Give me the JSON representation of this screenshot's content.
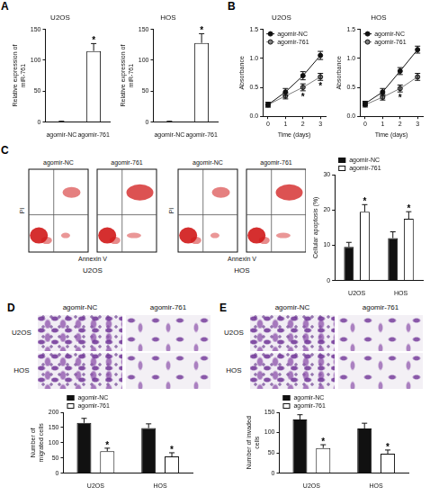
{
  "chart_data": [
    {
      "panel": "A",
      "type": "bar",
      "title": "U2OS",
      "y_label": "Relative expression of miR-761",
      "categories": [
        "agomir-NC",
        "agomir-761"
      ],
      "values": [
        1,
        115
      ],
      "errors": [
        0.35,
        12
      ],
      "colors": [
        "#111111",
        "#ffffff"
      ],
      "ylim": [
        0,
        150
      ],
      "yticks": [
        0,
        50,
        100,
        150
      ],
      "grid": false,
      "annotations": [
        {
          "index": 1,
          "text": "*"
        }
      ]
    },
    {
      "type": "bar",
      "title": "HOS",
      "y_label": "Relative expression of miR-761",
      "categories": [
        "agomir-NC",
        "agomir-761"
      ],
      "values": [
        1,
        128
      ],
      "errors": [
        0.3,
        15
      ],
      "colors": [
        "#111111",
        "#ffffff"
      ],
      "ylim": [
        0,
        150
      ],
      "yticks": [
        0,
        50,
        100,
        150
      ],
      "grid": false,
      "annotations": [
        {
          "index": 1,
          "text": "*"
        }
      ]
    },
    {
      "panel": "B",
      "type": "line",
      "title": "U2OS",
      "x_label": "Time (days)",
      "y_label": "Absorbance",
      "x": [
        0,
        1,
        2,
        3
      ],
      "xlim": [
        -0.3,
        3.3
      ],
      "xticks": [
        0,
        1,
        2,
        3
      ],
      "ylim": [
        0,
        1.5
      ],
      "yticks": [
        {
          "value": 0,
          "label": "0.0"
        },
        {
          "value": 0.5,
          "label": "0.5"
        },
        {
          "value": 1,
          "label": "1.0"
        },
        {
          "value": 1.5,
          "label": "1.5"
        }
      ],
      "grid": false,
      "legend": "top-left",
      "series": [
        {
          "name": "agomir-NC",
          "color": "#111111",
          "marker": "circle",
          "values": [
            0.2,
            0.42,
            0.7,
            1.05
          ],
          "errors": [
            0.04,
            0.06,
            0.07,
            0.07
          ]
        },
        {
          "name": "agomir-761",
          "color": "#7f7f7f",
          "marker": "circle",
          "values": [
            0.2,
            0.35,
            0.5,
            0.68
          ],
          "errors": [
            0.04,
            0.05,
            0.06,
            0.06
          ]
        }
      ],
      "annotations": [
        {
          "series": 1,
          "x": 2,
          "text": "*"
        },
        {
          "series": 1,
          "x": 3,
          "text": "*"
        }
      ]
    },
    {
      "type": "line",
      "title": "HOS",
      "x_label": "Time (days)",
      "y_label": "Absorbance",
      "x": [
        0,
        1,
        2,
        3
      ],
      "xlim": [
        -0.3,
        3.3
      ],
      "xticks": [
        0,
        1,
        2,
        3
      ],
      "ylim": [
        0,
        1.5
      ],
      "yticks": [
        {
          "value": 0,
          "label": "0.0"
        },
        {
          "value": 0.5,
          "label": "0.5"
        },
        {
          "value": 1,
          "label": "1.0"
        },
        {
          "value": 1.5,
          "label": "1.5"
        }
      ],
      "grid": false,
      "legend": "top-left",
      "series": [
        {
          "name": "agomir-NC",
          "color": "#111111",
          "marker": "circle",
          "values": [
            0.22,
            0.42,
            0.78,
            1.15
          ],
          "errors": [
            0.04,
            0.06,
            0.06,
            0.06
          ]
        },
        {
          "name": "agomir-761",
          "color": "#7f7f7f",
          "marker": "circle",
          "values": [
            0.2,
            0.33,
            0.48,
            0.68
          ],
          "errors": [
            0.04,
            0.05,
            0.06,
            0.06
          ]
        }
      ],
      "annotations": [
        {
          "series": 1,
          "x": 2,
          "text": "*"
        }
      ]
    },
    {
      "type": "bar",
      "y_label": "Cellular apoptosis (%)",
      "categories": [
        "U2OS",
        "HOS"
      ],
      "series": [
        {
          "name": "agomir-NC",
          "color": "#111111",
          "values": [
            9.5,
            12
          ],
          "errors": [
            1.3,
            1.8
          ]
        },
        {
          "name": "agomir-761",
          "color": "#ffffff",
          "values": [
            19.5,
            17.5
          ],
          "errors": [
            2,
            2
          ]
        }
      ],
      "ylim": [
        0,
        30
      ],
      "yticks": [
        0,
        10,
        20,
        30
      ],
      "grid": false,
      "legend": "top-left",
      "annotations": [
        {
          "series": 1,
          "index": 0,
          "text": "*"
        },
        {
          "series": 1,
          "index": 1,
          "text": "*"
        }
      ]
    },
    {
      "type": "bar",
      "y_label": "Number of migrated cells",
      "categories": [
        "U2OS",
        "HOS"
      ],
      "series": [
        {
          "name": "agomir-NC",
          "color": "#111111",
          "values": [
            165,
            148
          ],
          "errors": [
            15,
            14
          ]
        },
        {
          "name": "agomir-761",
          "color": "#ffffff",
          "values": [
            72,
            55
          ],
          "errors": [
            10,
            12
          ]
        }
      ],
      "ylim": [
        0,
        200
      ],
      "yticks": [
        0,
        50,
        100,
        150,
        200
      ],
      "grid": false,
      "legend": "top-left",
      "annotations": [
        {
          "series": 1,
          "index": 0,
          "text": "*"
        },
        {
          "series": 1,
          "index": 1,
          "text": "*"
        }
      ]
    },
    {
      "type": "bar",
      "y_label": "Number of invaded cells",
      "categories": [
        "U2OS",
        "HOS"
      ],
      "series": [
        {
          "name": "agomir-NC",
          "color": "#111111",
          "values": [
            132,
            110
          ],
          "errors": [
            12,
            13
          ]
        },
        {
          "name": "agomir-761",
          "color": "#ffffff",
          "values": [
            62,
            48
          ],
          "errors": [
            8,
            9
          ]
        }
      ],
      "ylim": [
        0,
        150
      ],
      "yticks": [
        0,
        50,
        100,
        150
      ],
      "grid": false,
      "legend": "top-left",
      "annotations": [
        {
          "series": 1,
          "index": 0,
          "text": "*"
        },
        {
          "series": 1,
          "index": 1,
          "text": "*"
        }
      ]
    }
  ],
  "flow_cytometry": {
    "panel": "C",
    "groups": [
      {
        "cell": "U2OS",
        "x_label": "Annexin V",
        "y_label": "PI",
        "titles": [
          "agomir-NC",
          "agomir-761"
        ]
      },
      {
        "cell": "HOS",
        "x_label": "Annexin V",
        "y_label": "PI",
        "titles": [
          "agomir-NC",
          "agomir-761"
        ]
      }
    ]
  },
  "micrographs": [
    {
      "panel": "D",
      "columns": [
        "agomir-NC",
        "agomir-761"
      ],
      "rows": [
        "U2OS",
        "HOS"
      ]
    },
    {
      "panel": "E",
      "columns": [
        "agomir-NC",
        "agomir-761"
      ],
      "rows": [
        "U2OS",
        "HOS"
      ]
    }
  ]
}
